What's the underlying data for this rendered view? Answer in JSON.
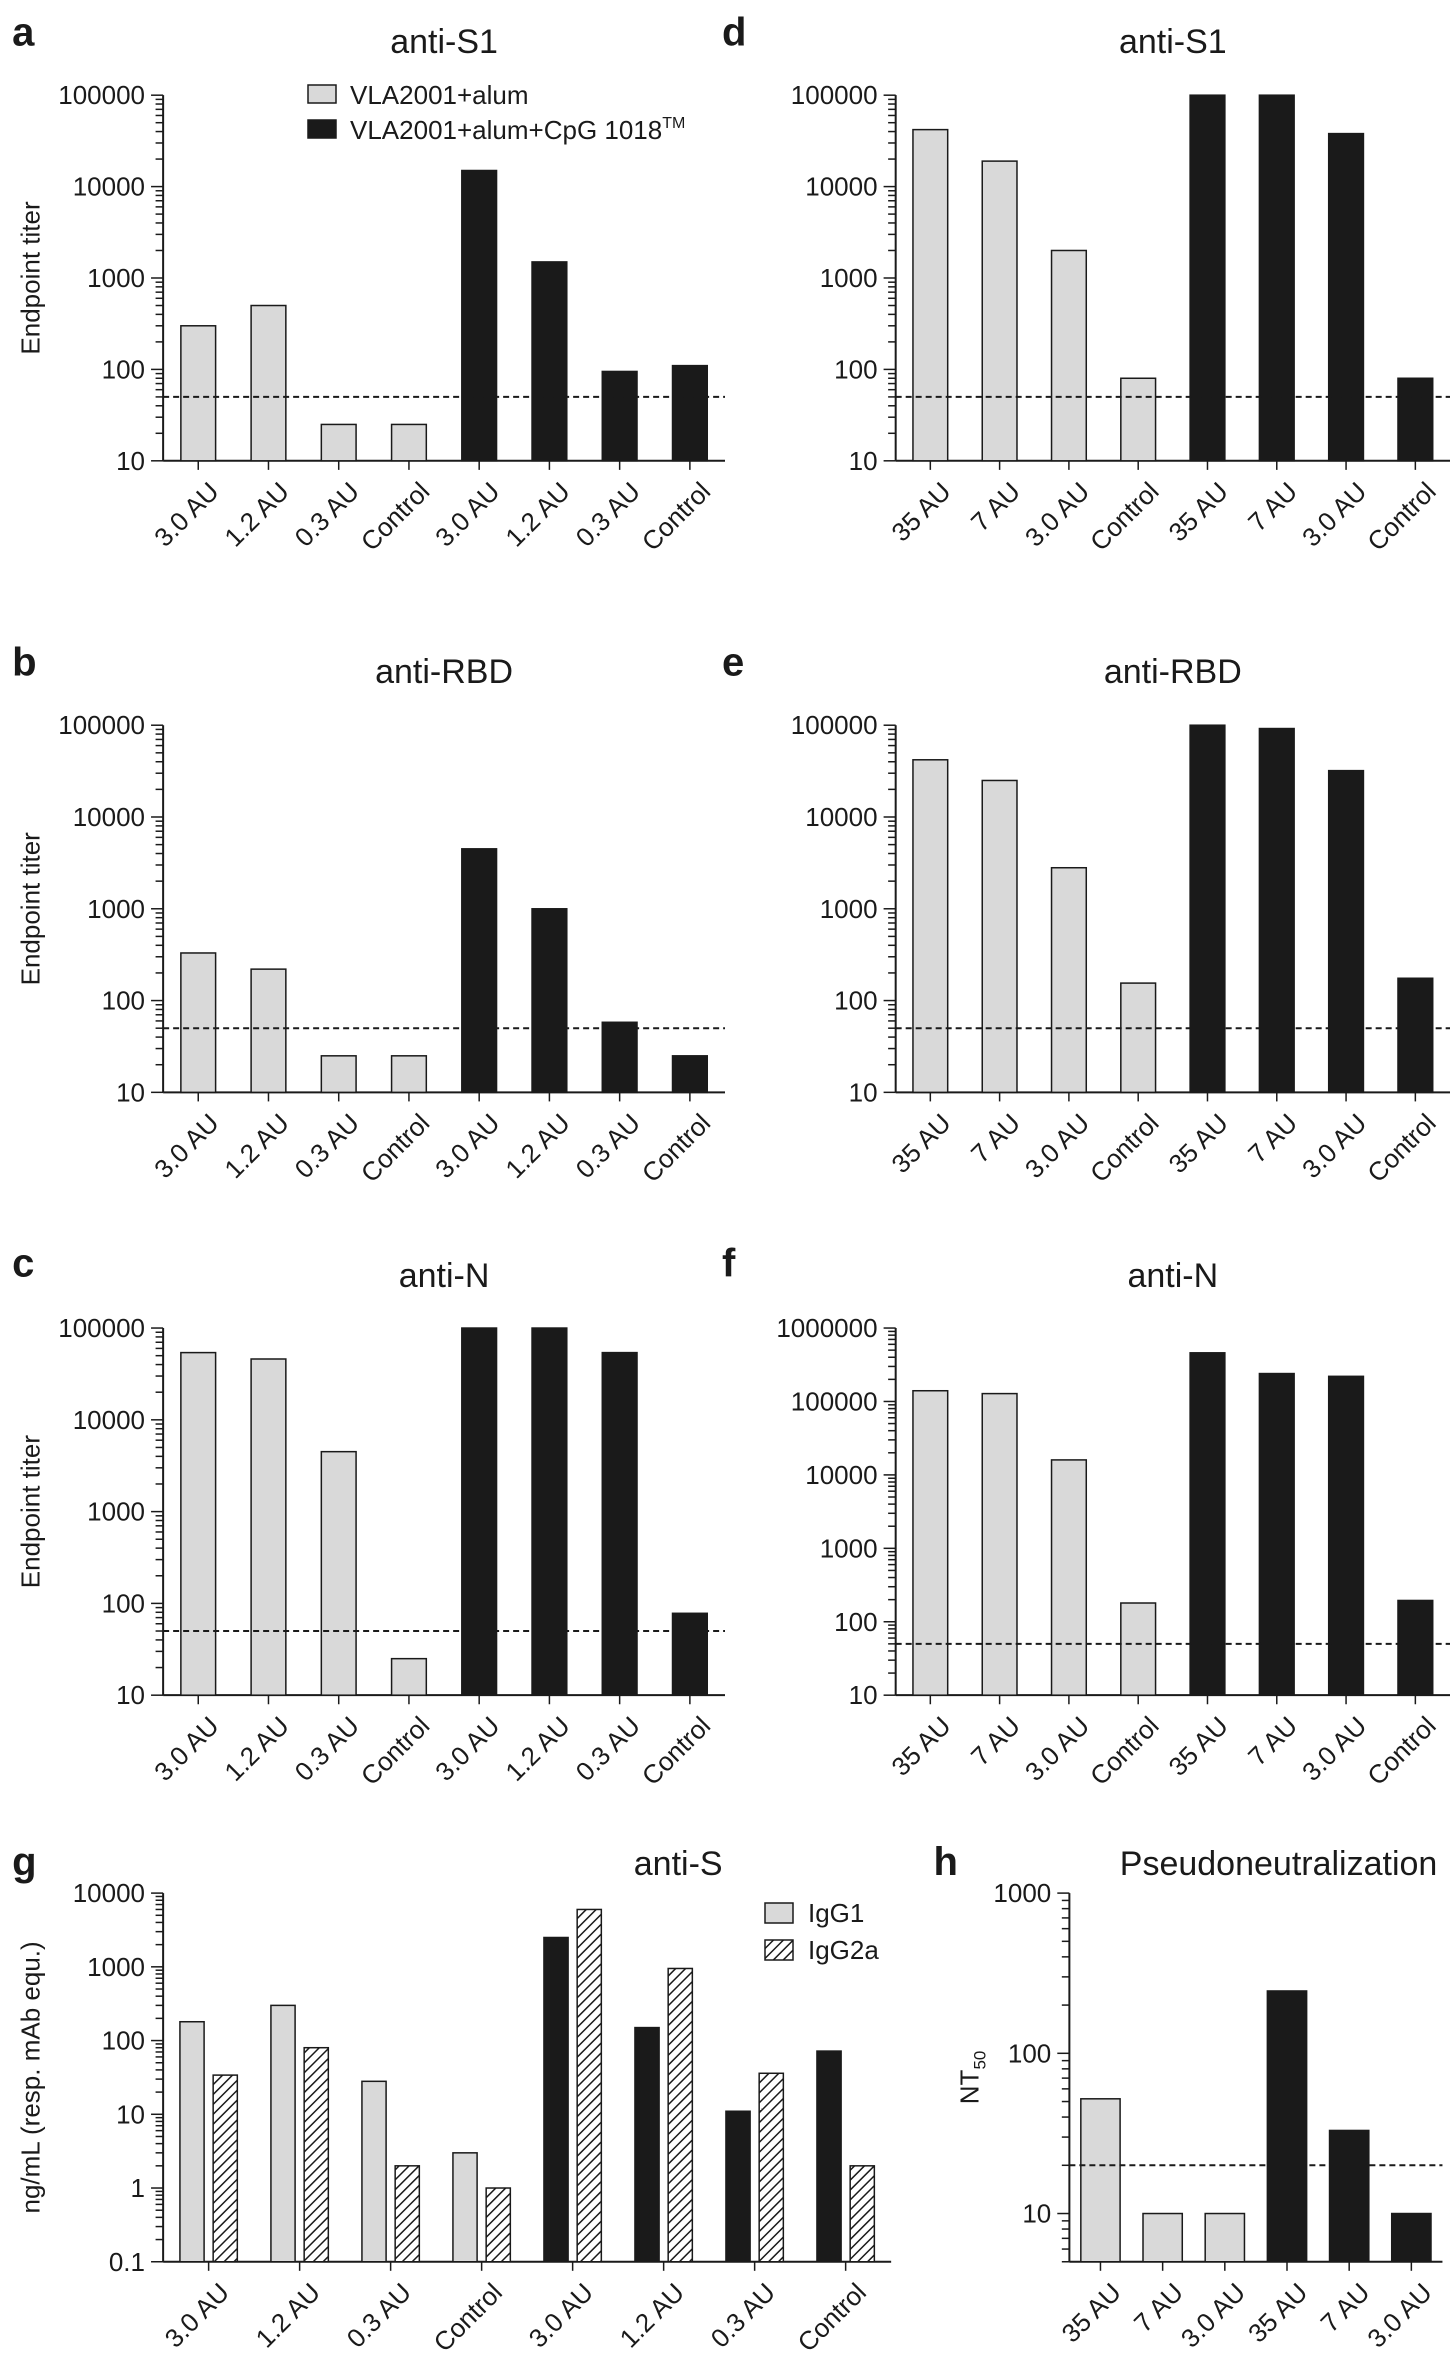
{
  "colors": {
    "light": "#d9d9d9",
    "dark": "#1a1a1a",
    "outline": "#1a1a1a",
    "dashed": "#1a1a1a"
  },
  "legend_top": [
    "VLA2001+alum",
    "VLA2001+alum+CpG 1018",
    "TM"
  ],
  "legend_g": [
    "IgG1",
    "IgG2a"
  ],
  "chart_data": [
    {
      "letter": "a",
      "type": "bar",
      "title": "anti-S1",
      "ylabel": "Endpoint titer",
      "scale": "log",
      "ylim": [
        10,
        100000
      ],
      "yticks": [
        "10",
        "100",
        "1000",
        "10000",
        "100000"
      ],
      "threshold": 50,
      "categories": [
        "3.0 AU",
        "1.2 AU",
        "0.3 AU",
        "Control",
        "3.0 AU",
        "1.2 AU",
        "0.3 AU",
        "Control"
      ],
      "series": [
        {
          "name": "VLA2001+alum",
          "values": [
            300,
            500,
            25,
            25,
            null,
            null,
            null,
            null
          ]
        },
        {
          "name": "VLA2001+alum+CpG 1018",
          "values": [
            null,
            null,
            null,
            null,
            15000,
            1500,
            95,
            110
          ]
        }
      ]
    },
    {
      "letter": "d",
      "type": "bar",
      "title": "anti-S1",
      "ylabel": "",
      "scale": "log",
      "ylim": [
        10,
        100000
      ],
      "yticks": [
        "10",
        "100",
        "1000",
        "10000",
        "100000"
      ],
      "threshold": 50,
      "categories": [
        "35 AU",
        "7 AU",
        "3.0 AU",
        "Control",
        "35 AU",
        "7 AU",
        "3.0 AU",
        "Control"
      ],
      "series": [
        {
          "name": "VLA2001+alum",
          "values": [
            42000,
            19000,
            2000,
            80,
            null,
            null,
            null,
            null
          ]
        },
        {
          "name": "VLA2001+alum+CpG 1018",
          "values": [
            null,
            null,
            null,
            null,
            100000,
            100000,
            38000,
            80
          ]
        }
      ]
    },
    {
      "letter": "b",
      "type": "bar",
      "title": "anti-RBD",
      "ylabel": "Endpoint titer",
      "scale": "log",
      "ylim": [
        10,
        100000
      ],
      "yticks": [
        "10",
        "100",
        "1000",
        "10000",
        "100000"
      ],
      "threshold": 50,
      "categories": [
        "3.0 AU",
        "1.2 AU",
        "0.3 AU",
        "Control",
        "3.0 AU",
        "1.2 AU",
        "0.3 AU",
        "Control"
      ],
      "series": [
        {
          "name": "VLA2001+alum",
          "values": [
            330,
            220,
            25,
            25,
            null,
            null,
            null,
            null
          ]
        },
        {
          "name": "VLA2001+alum+CpG 1018",
          "values": [
            null,
            null,
            null,
            null,
            4500,
            1000,
            58,
            25
          ]
        }
      ]
    },
    {
      "letter": "e",
      "type": "bar",
      "title": "anti-RBD",
      "ylabel": "",
      "scale": "log",
      "ylim": [
        10,
        100000
      ],
      "yticks": [
        "10",
        "100",
        "1000",
        "10000",
        "100000"
      ],
      "threshold": 50,
      "categories": [
        "35 AU",
        "7 AU",
        "3.0 AU",
        "Control",
        "35 AU",
        "7 AU",
        "3.0 AU",
        "Control"
      ],
      "series": [
        {
          "name": "VLA2001+alum",
          "values": [
            42000,
            25000,
            2800,
            155,
            null,
            null,
            null,
            null
          ]
        },
        {
          "name": "VLA2001+alum+CpG 1018",
          "values": [
            null,
            null,
            null,
            null,
            100000,
            92000,
            32000,
            175
          ]
        }
      ]
    },
    {
      "letter": "c",
      "type": "bar",
      "title": "anti-N",
      "ylabel": "Endpoint titer",
      "scale": "log",
      "ylim": [
        10,
        100000
      ],
      "yticks": [
        "10",
        "100",
        "1000",
        "10000",
        "100000"
      ],
      "threshold": 50,
      "categories": [
        "3.0 AU",
        "1.2 AU",
        "0.3 AU",
        "Control",
        "3.0 AU",
        "1.2 AU",
        "0.3 AU",
        "Control"
      ],
      "series": [
        {
          "name": "VLA2001+alum",
          "values": [
            54000,
            46000,
            4500,
            25,
            null,
            null,
            null,
            null
          ]
        },
        {
          "name": "VLA2001+alum+CpG 1018",
          "values": [
            null,
            null,
            null,
            null,
            100000,
            100000,
            54000,
            78
          ]
        }
      ]
    },
    {
      "letter": "f",
      "type": "bar",
      "title": "anti-N",
      "ylabel": "",
      "scale": "log",
      "ylim": [
        10,
        1000000
      ],
      "yticks": [
        "10",
        "100",
        "1000",
        "10000",
        "100000",
        "1000000"
      ],
      "threshold": 50,
      "categories": [
        "35 AU",
        "7 AU",
        "3.0 AU",
        "Control",
        "35 AU",
        "7 AU",
        "3.0 AU",
        "Control"
      ],
      "series": [
        {
          "name": "VLA2001+alum",
          "values": [
            140000,
            128000,
            16000,
            180,
            null,
            null,
            null,
            null
          ]
        },
        {
          "name": "VLA2001+alum+CpG 1018",
          "values": [
            null,
            null,
            null,
            null,
            460000,
            240000,
            220000,
            195
          ]
        }
      ]
    },
    {
      "letter": "g",
      "type": "bar",
      "title": "anti-S",
      "ylabel": "ng/mL (resp. mAb equ.)",
      "scale": "log",
      "ylim": [
        0.1,
        10000
      ],
      "yticks": [
        "0.1",
        "1",
        "10",
        "100",
        "1000",
        "10000"
      ],
      "threshold": null,
      "categories": [
        "3.0 AU",
        "1.2 AU",
        "0.3 AU",
        "Control",
        "3.0 AU",
        "1.2 AU",
        "0.3 AU",
        "Control"
      ],
      "series": [
        {
          "name": "IgG1",
          "values": [
            180,
            300,
            28,
            3,
            2500,
            150,
            11,
            72
          ]
        },
        {
          "name": "IgG2a",
          "values": [
            34,
            80,
            2,
            1,
            6000,
            950,
            36,
            2
          ]
        }
      ]
    },
    {
      "letter": "h",
      "type": "bar",
      "title": "Pseudoneutralization",
      "ylabel": "NT50",
      "scale": "log",
      "ylim": [
        5,
        1000
      ],
      "yticks": [
        "10",
        "100",
        "1000"
      ],
      "threshold": 20,
      "categories": [
        "35 AU",
        "7 AU",
        "3.0 AU",
        "35 AU",
        "7 AU",
        "3.0 AU"
      ],
      "series": [
        {
          "name": "VLA2001+alum",
          "values": [
            52,
            10,
            10,
            null,
            null,
            null
          ]
        },
        {
          "name": "VLA2001+alum+CpG 1018",
          "values": [
            null,
            null,
            null,
            245,
            33,
            10
          ]
        }
      ]
    }
  ]
}
